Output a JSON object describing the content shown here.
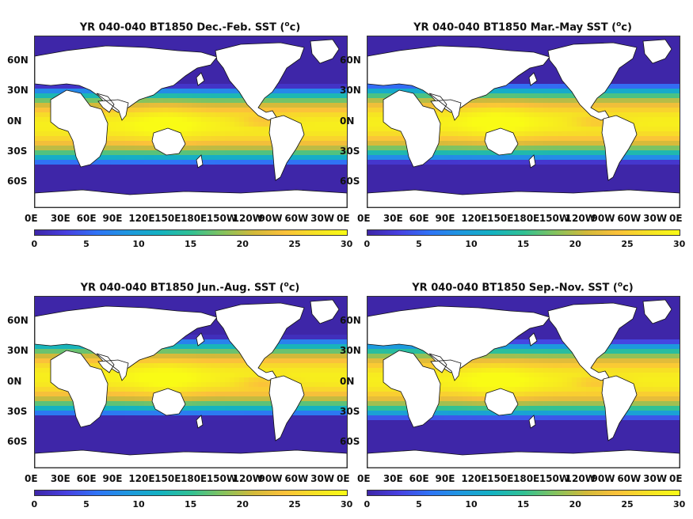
{
  "colorbar": {
    "colors": [
      "#3e26a8",
      "#4840e0",
      "#2f74f6",
      "#1e98df",
      "#14b2c1",
      "#31c194",
      "#83c35f",
      "#d2b93a",
      "#fbc13a",
      "#f6e224",
      "#f9fb15"
    ],
    "ticks": [
      "0",
      "5",
      "10",
      "15",
      "20",
      "25",
      "30"
    ],
    "range": [
      0,
      30
    ],
    "units": "°C"
  },
  "lat_labels": [
    "60N",
    "30N",
    "0N",
    "30S",
    "60S"
  ],
  "lon_labels": [
    "0E",
    "30E",
    "60E",
    "90E",
    "120E",
    "150E",
    "180E",
    "150W",
    "120W",
    "90W",
    "60W",
    "30W",
    "0E"
  ],
  "panels": [
    {
      "title_prefix": "YR 040-040 BT1850 Dec.-Feb. SST (",
      "title_sup": "o",
      "title_suffix": "c)",
      "season": "DJF"
    },
    {
      "title_prefix": "YR 040-040 BT1850 Mar.-May SST (",
      "title_sup": "o",
      "title_suffix": "c)",
      "season": "MAM"
    },
    {
      "title_prefix": "YR 040-040 BT1850 Jun.-Aug. SST (",
      "title_sup": "o",
      "title_suffix": "c)",
      "season": "JJA"
    },
    {
      "title_prefix": "YR 040-040 BT1850 Sep.-Nov. SST (",
      "title_sup": "o",
      "title_suffix": "c)",
      "season": "SON"
    }
  ]
}
